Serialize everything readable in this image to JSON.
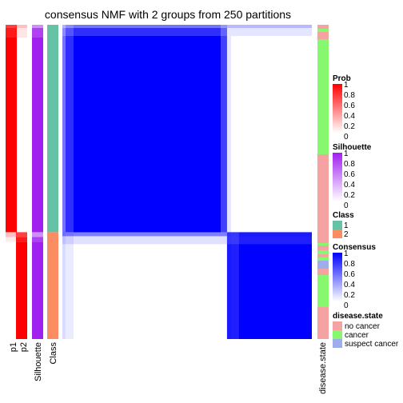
{
  "chart_data": {
    "type": "heatmap",
    "title": "consensus NMF with 2 groups from 250 partitions",
    "tracks": [
      {
        "label": "p1",
        "color": "#ff0000"
      },
      {
        "label": "p2",
        "color": "#ff0000"
      },
      {
        "label": "Silhouette",
        "color": "#a020f0"
      },
      {
        "label": "Class",
        "color": "#66c2a5"
      }
    ],
    "right_track_label": "disease.state",
    "samples_total": 100,
    "group1_samples": 66,
    "group1_core_consensus": 1.0,
    "group2_core_consensus": 1.0,
    "legends": [
      {
        "title": "Prob",
        "gradient": [
          "#ffffff",
          "#ff0000"
        ],
        "ticks": [
          "1",
          "0.8",
          "0.6",
          "0.4",
          "0.2",
          "0"
        ]
      },
      {
        "title": "Silhouette",
        "gradient": [
          "#ffffff",
          "#a020f0"
        ],
        "ticks": [
          "1",
          "0.8",
          "0.6",
          "0.4",
          "0.2",
          "0"
        ]
      },
      {
        "title": "Class",
        "items": [
          {
            "label": "1",
            "color": "#66c2a5"
          },
          {
            "label": "2",
            "color": "#fc8d62"
          }
        ]
      },
      {
        "title": "Consensus",
        "gradient": [
          "#ffffff",
          "#0000ff"
        ],
        "ticks": [
          "1",
          "0.8",
          "0.6",
          "0.4",
          "0.2",
          "0"
        ]
      },
      {
        "title": "disease.state",
        "items": [
          {
            "label": "no cancer",
            "color": "#f4a2a2"
          },
          {
            "label": "cancer",
            "color": "#88f770"
          },
          {
            "label": "suspect cancer",
            "color": "#9eaeec"
          }
        ]
      }
    ]
  }
}
